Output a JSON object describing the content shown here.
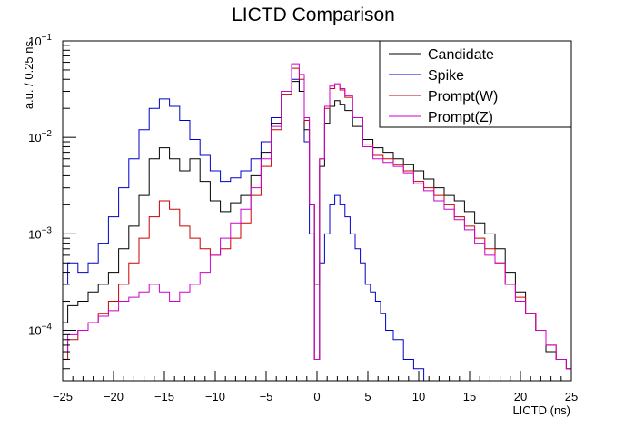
{
  "chart_data": {
    "type": "line",
    "title": "LICTD Comparison",
    "xlabel": "LICTD (ns)",
    "ylabel": "a.u. / 0.25 ns",
    "xlim": [
      -25,
      25
    ],
    "ylim": [
      3e-05,
      0.1
    ],
    "yscale": "log",
    "grid": false,
    "legend_position": "top-right",
    "x_ticks": [
      {
        "value": -25,
        "label": "−25"
      },
      {
        "value": -20,
        "label": "−20"
      },
      {
        "value": -15,
        "label": "−15"
      },
      {
        "value": -10,
        "label": "−10"
      },
      {
        "value": -5,
        "label": "−5"
      },
      {
        "value": 0,
        "label": "0"
      },
      {
        "value": 5,
        "label": "5"
      },
      {
        "value": 10,
        "label": "10"
      },
      {
        "value": 15,
        "label": "15"
      },
      {
        "value": 20,
        "label": "20"
      },
      {
        "value": 25,
        "label": "25"
      }
    ],
    "y_ticks": [
      {
        "value": 0.0001,
        "base": "10",
        "exp": "−4"
      },
      {
        "value": 0.001,
        "base": "10",
        "exp": "−3"
      },
      {
        "value": 0.01,
        "base": "10",
        "exp": "−2"
      },
      {
        "value": 0.1,
        "base": "10",
        "exp": "−1"
      }
    ],
    "series": [
      {
        "name": "Candidate",
        "color": "#000000",
        "x": [
          -25,
          -24,
          -23,
          -22,
          -21,
          -20,
          -19,
          -18,
          -17,
          -16,
          -15,
          -14,
          -13,
          -12,
          -11,
          -10,
          -9,
          -8,
          -7,
          -6,
          -5,
          -4,
          -3,
          -2,
          -1.5,
          -1,
          -0.5,
          0,
          0.5,
          1,
          1.5,
          2,
          2.5,
          3,
          4,
          5,
          6,
          7,
          8,
          9,
          10,
          11,
          12,
          13,
          14,
          15,
          16,
          17,
          18,
          19,
          20,
          21,
          22,
          23,
          24,
          25
        ],
        "values": [
          0.00012,
          0.00018,
          0.0002,
          0.00025,
          0.0003,
          0.0004,
          0.0007,
          0.0012,
          0.0025,
          0.006,
          0.0078,
          0.006,
          0.0045,
          0.006,
          0.0035,
          0.0022,
          0.0017,
          0.0021,
          0.0025,
          0.004,
          0.007,
          0.014,
          0.028,
          0.038,
          0.03,
          0.012,
          0.002,
          0.0003,
          0.005,
          0.014,
          0.021,
          0.024,
          0.022,
          0.019,
          0.013,
          0.0095,
          0.0078,
          0.007,
          0.006,
          0.0052,
          0.0045,
          0.0037,
          0.003,
          0.0025,
          0.0022,
          0.0017,
          0.0013,
          0.001,
          0.0007,
          0.0004,
          0.00025,
          0.00015,
          0.0001,
          6e-05,
          5e-05,
          4e-05
        ]
      },
      {
        "name": "Spike",
        "color": "#0000cc",
        "x": [
          -25,
          -24,
          -23,
          -22,
          -21,
          -20,
          -19,
          -18,
          -17,
          -16,
          -15,
          -14,
          -13,
          -12,
          -11,
          -10,
          -9,
          -8,
          -7,
          -6,
          -5,
          -4,
          -3,
          -2,
          -1.5,
          -1,
          -0.5,
          0,
          0.5,
          1,
          1.5,
          2,
          2.5,
          3,
          3.5,
          4,
          4.5,
          5,
          5.5,
          6,
          6.5,
          7,
          8,
          9,
          10,
          11,
          12
        ],
        "values": [
          0.0003,
          0.0005,
          0.0004,
          0.0005,
          0.0008,
          0.0015,
          0.003,
          0.006,
          0.012,
          0.02,
          0.025,
          0.021,
          0.015,
          0.0095,
          0.0065,
          0.0045,
          0.0035,
          0.0038,
          0.0045,
          0.006,
          0.009,
          0.016,
          0.03,
          0.04,
          0.03,
          0.009,
          0.001,
          5e-05,
          0.0005,
          0.001,
          0.002,
          0.0025,
          0.002,
          0.0015,
          0.001,
          0.0007,
          0.0005,
          0.0003,
          0.00025,
          0.0002,
          0.00015,
          0.0001,
          8e-05,
          5e-05,
          4e-05,
          3e-05,
          3e-05
        ]
      },
      {
        "name": "Prompt(W)",
        "color": "#cc0000",
        "x": [
          -25,
          -24,
          -23,
          -22,
          -21,
          -20,
          -19,
          -18,
          -17,
          -16,
          -15,
          -14,
          -13,
          -12,
          -11,
          -10,
          -9,
          -8,
          -7,
          -6,
          -5,
          -4,
          -3,
          -2,
          -1.5,
          -1,
          -0.5,
          0,
          0.5,
          1,
          1.5,
          2,
          2.5,
          3,
          4,
          5,
          6,
          7,
          8,
          9,
          10,
          11,
          12,
          13,
          14,
          15,
          16,
          17,
          18,
          19,
          20,
          21,
          22,
          23,
          24,
          25
        ],
        "values": [
          5e-05,
          8e-05,
          0.0001,
          0.00012,
          0.00015,
          0.0002,
          0.0003,
          0.0005,
          0.0009,
          0.0015,
          0.0022,
          0.0018,
          0.0012,
          0.0009,
          0.0007,
          0.0006,
          0.0007,
          0.0009,
          0.0013,
          0.0025,
          0.005,
          0.012,
          0.028,
          0.052,
          0.04,
          0.015,
          0.002,
          5e-05,
          0.006,
          0.02,
          0.032,
          0.035,
          0.031,
          0.026,
          0.016,
          0.0085,
          0.0065,
          0.006,
          0.0052,
          0.0045,
          0.0035,
          0.003,
          0.0025,
          0.002,
          0.0015,
          0.0012,
          0.0009,
          0.0007,
          0.0005,
          0.0003,
          0.00022,
          0.00015,
          0.0001,
          7e-05,
          5e-05,
          4e-05
        ]
      },
      {
        "name": "Prompt(Z)",
        "color": "#cc00cc",
        "x": [
          -25,
          -24,
          -23,
          -22,
          -21,
          -20,
          -19,
          -18,
          -17,
          -16,
          -15,
          -14,
          -13,
          -12,
          -11,
          -10,
          -9,
          -8,
          -7,
          -6,
          -5,
          -4,
          -3,
          -2,
          -1.5,
          -1,
          -0.5,
          0,
          0.5,
          1,
          1.5,
          2,
          2.5,
          3,
          4,
          5,
          6,
          7,
          8,
          9,
          10,
          11,
          12,
          13,
          14,
          15,
          16,
          17,
          18,
          19,
          20,
          21,
          22,
          23,
          24,
          25
        ],
        "values": [
          6e-05,
          9e-05,
          0.0001,
          0.00012,
          0.00014,
          0.00016,
          0.0002,
          0.00022,
          0.00025,
          0.0003,
          0.00025,
          0.0002,
          0.00025,
          0.0003,
          0.0004,
          0.0006,
          0.0009,
          0.0013,
          0.0018,
          0.003,
          0.006,
          0.013,
          0.03,
          0.058,
          0.045,
          0.016,
          0.002,
          5e-05,
          0.006,
          0.021,
          0.034,
          0.036,
          0.032,
          0.027,
          0.016,
          0.008,
          0.006,
          0.0055,
          0.005,
          0.0043,
          0.0033,
          0.0028,
          0.0022,
          0.0018,
          0.0014,
          0.0011,
          0.0008,
          0.0006,
          0.0005,
          0.0003,
          0.0002,
          0.00015,
          0.0001,
          7e-05,
          5e-05,
          4e-05
        ]
      }
    ]
  }
}
